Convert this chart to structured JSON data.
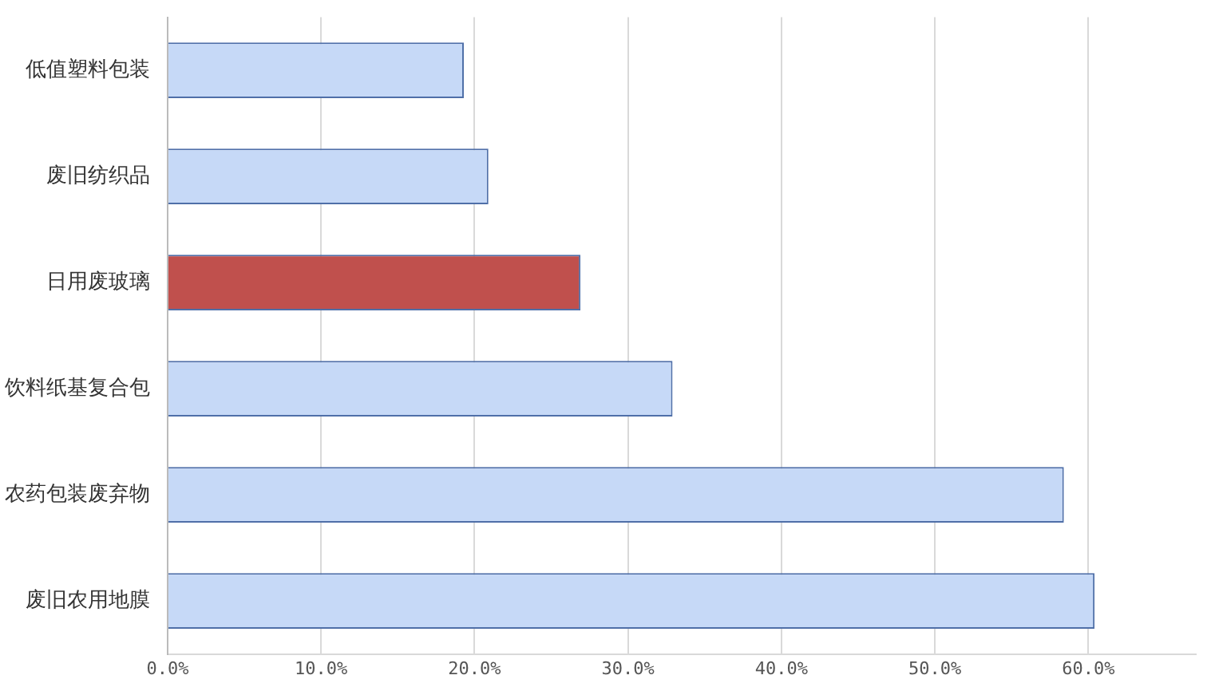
{
  "chart_data": {
    "type": "bar",
    "orientation": "horizontal",
    "categories": [
      "低值塑料包装",
      "废旧纺织品",
      "日用废玻璃",
      "饮料纸基复合包",
      "农药包装废弃物",
      "废旧农用地膜"
    ],
    "values": [
      19.3,
      20.9,
      26.9,
      32.9,
      58.4,
      60.4
    ],
    "colors": [
      "#c6d9f7",
      "#c6d9f7",
      "#c0504d",
      "#c6d9f7",
      "#c6d9f7",
      "#c6d9f7"
    ],
    "xlim": [
      0,
      67
    ],
    "xticks": [
      {
        "value": 0,
        "label": "0.0%"
      },
      {
        "value": 10,
        "label": "10.0%"
      },
      {
        "value": 20,
        "label": "20.0%"
      },
      {
        "value": 30,
        "label": "30.0%"
      },
      {
        "value": 40,
        "label": "40.0%"
      },
      {
        "value": 50,
        "label": "50.0%"
      },
      {
        "value": 60,
        "label": "60.0%"
      }
    ],
    "grid": "x",
    "legend": false
  }
}
